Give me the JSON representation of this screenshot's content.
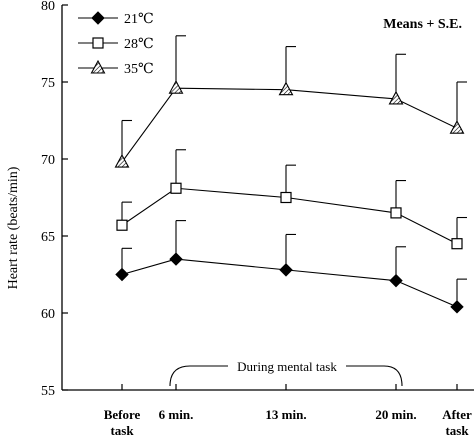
{
  "chart_data": {
    "type": "line",
    "ylabel": "Heart rate (beats/min)",
    "annotation": "Means + S.E.",
    "bracket_label": "During mental task",
    "categories": [
      [
        "Before",
        "task"
      ],
      [
        "6 min."
      ],
      [
        "13 min."
      ],
      [
        "20 min."
      ],
      [
        "After",
        "task"
      ]
    ],
    "ylim": [
      55,
      80
    ],
    "yticks": [
      55,
      60,
      65,
      70,
      75,
      80
    ],
    "legend_position": "top-left",
    "series": [
      {
        "name": "21℃",
        "marker": "diamond-filled",
        "values": [
          62.5,
          63.5,
          62.8,
          62.1,
          60.4
        ],
        "se": [
          1.7,
          2.5,
          2.3,
          2.2,
          1.8
        ]
      },
      {
        "name": "28℃",
        "marker": "square-open",
        "values": [
          65.7,
          68.1,
          67.5,
          66.5,
          64.5
        ],
        "se": [
          1.5,
          2.5,
          2.1,
          2.1,
          1.7
        ]
      },
      {
        "name": "35℃",
        "marker": "triangle-hatched",
        "values": [
          69.8,
          74.6,
          74.5,
          73.9,
          72.0
        ],
        "se": [
          2.7,
          3.4,
          2.8,
          2.9,
          3.0
        ]
      }
    ]
  }
}
